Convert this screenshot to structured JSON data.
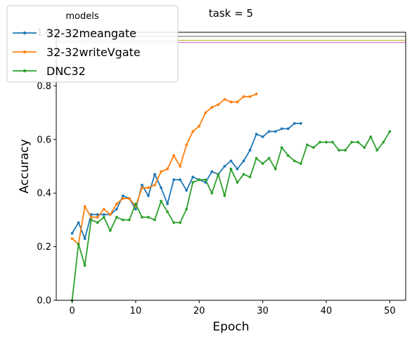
{
  "chart_data": {
    "type": "line",
    "title": "task = 5",
    "xlabel": "Epoch",
    "ylabel": "Accuracy",
    "xlim": [
      -2.5,
      52.5
    ],
    "ylim": [
      0.0,
      1.0
    ],
    "xticks": [
      "0",
      "10",
      "20",
      "30",
      "40",
      "50"
    ],
    "yticks": [
      "0.0",
      "0.2",
      "0.4",
      "0.6",
      "0.8",
      "1.0"
    ],
    "grid": false,
    "legend": {
      "title": "models",
      "placement": "top-left"
    },
    "reference_lines": [
      {
        "y": 0.985,
        "color": "#7f7f7f"
      },
      {
        "y": 0.97,
        "color": "#bcbd22"
      },
      {
        "y": 0.962,
        "color": "#e377c2"
      }
    ],
    "series": [
      {
        "name": "32-32meangate",
        "color": "#1f77b4",
        "x": [
          0,
          1,
          2,
          3,
          4,
          5,
          6,
          7,
          8,
          9,
          10,
          11,
          12,
          13,
          14,
          15,
          16,
          17,
          18,
          19,
          20,
          21,
          22,
          23,
          24,
          25,
          26,
          27,
          28,
          29,
          30,
          31,
          32,
          33,
          34,
          35,
          36
        ],
        "values": [
          0.25,
          0.29,
          0.23,
          0.32,
          0.32,
          0.32,
          0.32,
          0.34,
          0.39,
          0.38,
          0.34,
          0.43,
          0.39,
          0.47,
          0.42,
          0.36,
          0.45,
          0.45,
          0.41,
          0.46,
          0.45,
          0.44,
          0.48,
          0.47,
          0.5,
          0.52,
          0.49,
          0.52,
          0.56,
          0.62,
          0.61,
          0.63,
          0.63,
          0.64,
          0.64,
          0.66,
          0.66
        ]
      },
      {
        "name": "32-32writeVgate",
        "color": "#ff7f0e",
        "x": [
          0,
          1,
          2,
          3,
          4,
          5,
          6,
          7,
          8,
          9,
          10,
          11,
          12,
          13,
          14,
          15,
          16,
          17,
          18,
          19,
          20,
          21,
          22,
          23,
          24,
          25,
          26,
          27,
          28,
          29
        ],
        "values": [
          0.23,
          0.21,
          0.35,
          0.31,
          0.31,
          0.34,
          0.32,
          0.36,
          0.38,
          0.38,
          0.35,
          0.42,
          0.42,
          0.43,
          0.48,
          0.49,
          0.54,
          0.5,
          0.58,
          0.63,
          0.65,
          0.7,
          0.72,
          0.73,
          0.75,
          0.74,
          0.74,
          0.76,
          0.76,
          0.77
        ]
      },
      {
        "name": "DNC32",
        "color": "#2ca02c",
        "x": [
          0,
          1,
          2,
          3,
          4,
          5,
          6,
          7,
          8,
          9,
          10,
          11,
          12,
          13,
          14,
          15,
          16,
          17,
          18,
          19,
          20,
          21,
          22,
          23,
          24,
          25,
          26,
          27,
          28,
          29,
          30,
          31,
          32,
          33,
          34,
          35,
          36,
          37,
          38,
          39,
          40,
          41,
          42,
          43,
          44,
          45,
          46,
          47,
          48,
          49,
          50
        ],
        "values": [
          0.0,
          0.21,
          0.13,
          0.3,
          0.29,
          0.31,
          0.26,
          0.31,
          0.3,
          0.3,
          0.36,
          0.31,
          0.31,
          0.3,
          0.37,
          0.33,
          0.29,
          0.29,
          0.34,
          0.44,
          0.45,
          0.45,
          0.4,
          0.47,
          0.39,
          0.49,
          0.44,
          0.47,
          0.46,
          0.53,
          0.51,
          0.53,
          0.49,
          0.57,
          0.54,
          0.52,
          0.51,
          0.58,
          0.57,
          0.59,
          0.59,
          0.59,
          0.56,
          0.56,
          0.59,
          0.59,
          0.57,
          0.61,
          0.56,
          0.59,
          0.63
        ]
      }
    ]
  }
}
